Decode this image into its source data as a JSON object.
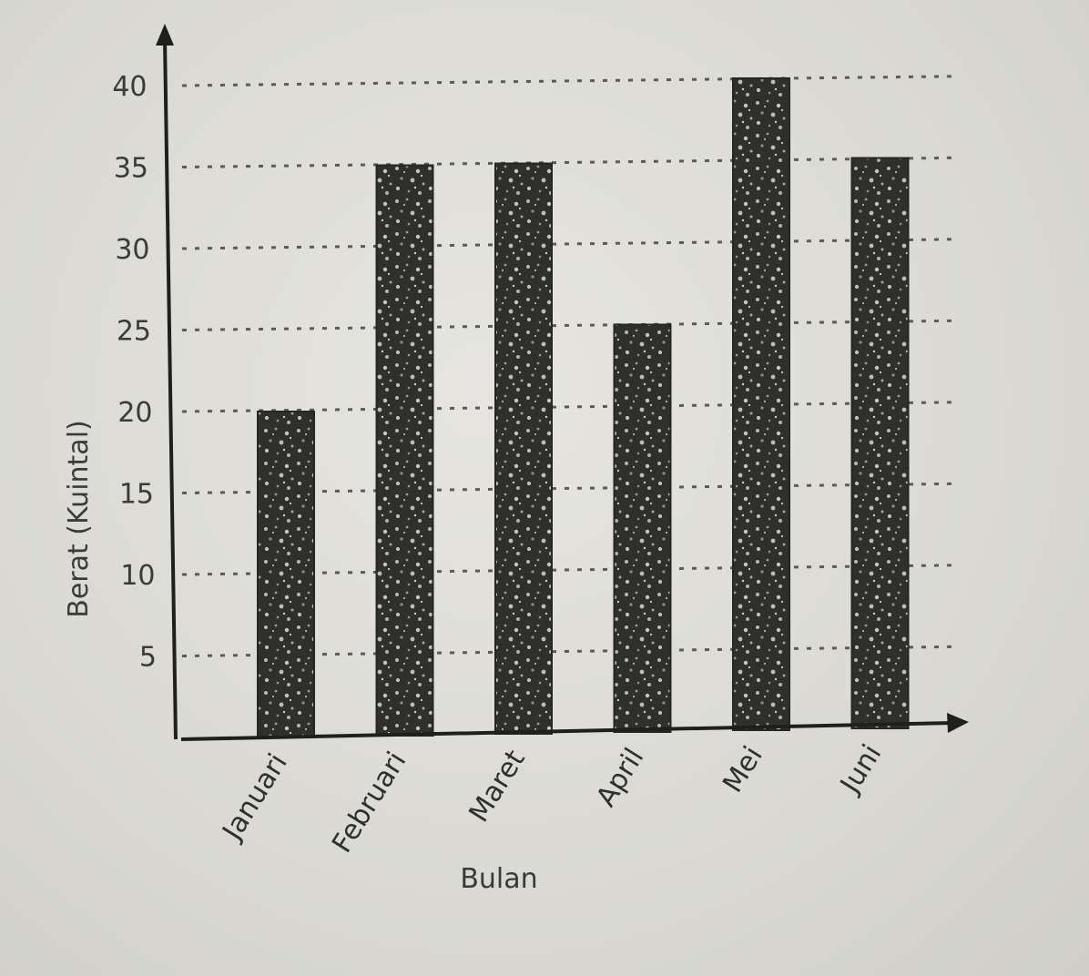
{
  "chart_data": {
    "type": "bar",
    "categories": [
      "Januari",
      "Februari",
      "Maret",
      "April",
      "Mei",
      "Juni"
    ],
    "values": [
      20,
      35,
      35,
      25,
      40,
      35
    ],
    "title": "",
    "xlabel": "Bulan",
    "ylabel": "Berat (Kuintal)",
    "ylim": [
      0,
      40
    ],
    "yticks": [
      5,
      10,
      15,
      20,
      25,
      30,
      35,
      40
    ],
    "grid": "horizontal-dotted",
    "legend": "none",
    "colors": {
      "bar": "#2e2e2c",
      "axis": "#1f1f1d",
      "paper": "#dcdbd6"
    }
  }
}
